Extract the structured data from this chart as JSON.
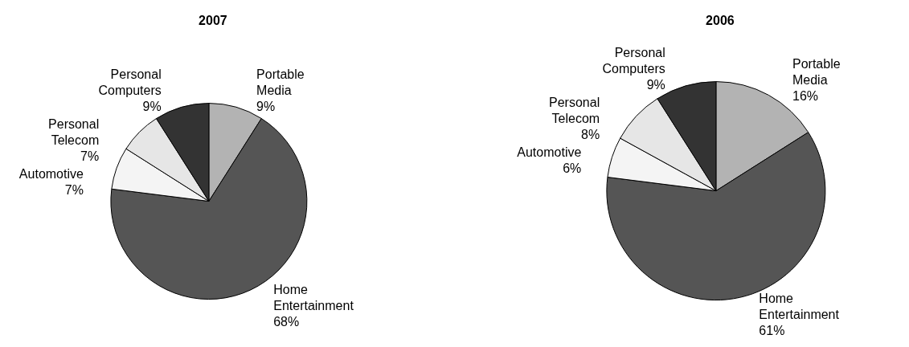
{
  "chart_data": [
    {
      "type": "pie",
      "title": "2007",
      "categories": [
        "Portable Media",
        "Home Entertainment",
        "Automotive",
        "Personal Telecom",
        "Personal Computers"
      ],
      "values": [
        9,
        68,
        7,
        7,
        9
      ],
      "value_labels": [
        "9%",
        "68%",
        "7%",
        "7%",
        "9%"
      ],
      "colors": [
        "#b3b3b3",
        "#555555",
        "#f4f4f4",
        "#e6e6e6",
        "#333333"
      ],
      "legend": false
    },
    {
      "type": "pie",
      "title": "2006",
      "categories": [
        "Portable Media",
        "Home Entertainment",
        "Automotive",
        "Personal Telecom",
        "Personal Computers"
      ],
      "values": [
        16,
        61,
        6,
        8,
        9
      ],
      "value_labels": [
        "16%",
        "61%",
        "6%",
        "8%",
        "9%"
      ],
      "colors": [
        "#b3b3b3",
        "#555555",
        "#f4f4f4",
        "#e6e6e6",
        "#333333"
      ],
      "legend": false
    }
  ]
}
